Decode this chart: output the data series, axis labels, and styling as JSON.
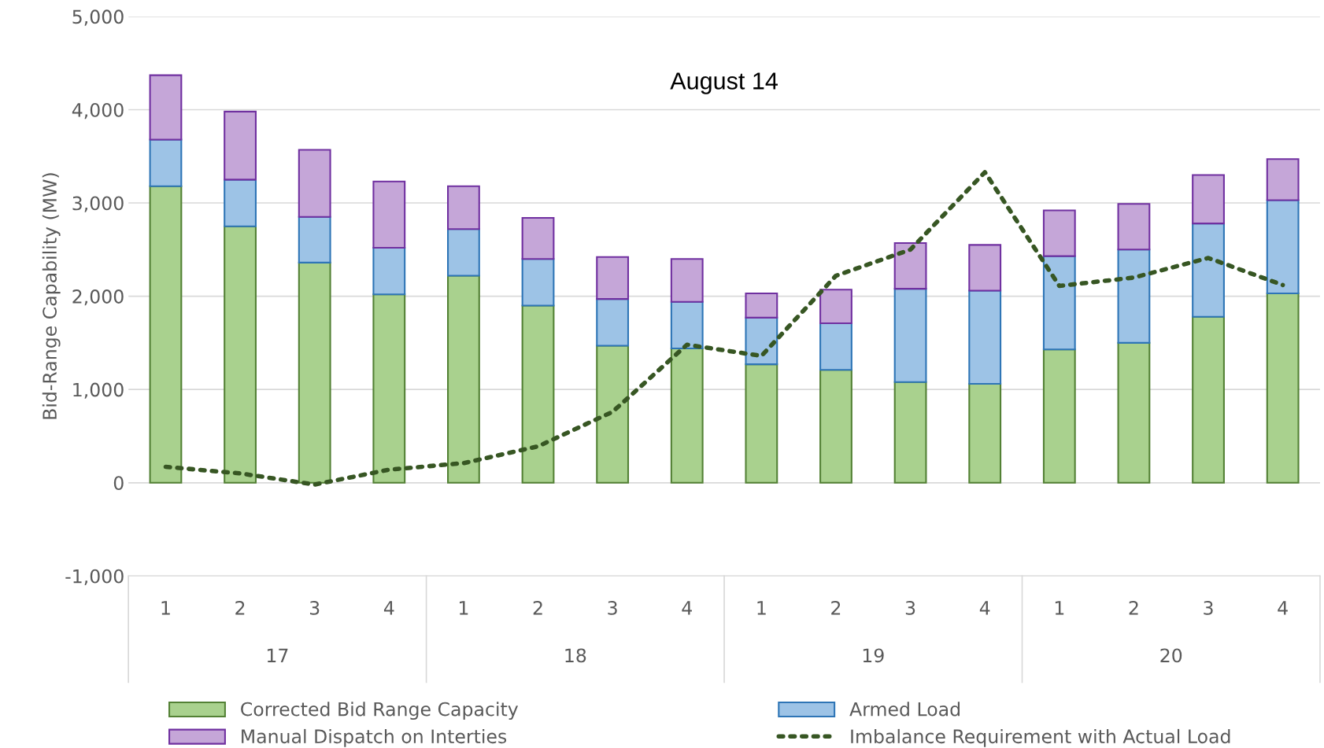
{
  "chart_data": {
    "type": "bar",
    "stacked": true,
    "title": "August 14",
    "ylabel": "Bid-Range Capability (MW)",
    "categories": [
      "1",
      "2",
      "3",
      "4",
      "1",
      "2",
      "3",
      "4",
      "1",
      "2",
      "3",
      "4",
      "1",
      "2",
      "3",
      "4"
    ],
    "annotations": [
      "17",
      "18",
      "19",
      "20"
    ],
    "ylim": [
      -1000,
      5000
    ],
    "yticks": [
      {
        "value": -1000,
        "label": "-1,000"
      },
      0,
      {
        "value": 1000,
        "label": "1,000"
      },
      {
        "value": 2000,
        "label": "2,000"
      },
      {
        "value": 3000,
        "label": "3,000"
      },
      {
        "value": 4000,
        "label": "4,000"
      },
      {
        "value": 5000,
        "label": "5,000"
      }
    ],
    "grid": "y",
    "legend": "bottom",
    "series": [
      {
        "name": "Corrected Bid Range Capacity",
        "color": "#a9d18e",
        "values": [
          3180,
          2750,
          2360,
          2020,
          2220,
          1900,
          1470,
          1440,
          1270,
          1210,
          1080,
          1060,
          1430,
          1500,
          1780,
          2030
        ]
      },
      {
        "name": "Manual Dispatch on Interties",
        "color": "#c5a6d8",
        "values": [
          690,
          730,
          720,
          710,
          460,
          440,
          450,
          460,
          260,
          360,
          490,
          490,
          490,
          490,
          520,
          440
        ]
      },
      {
        "name": "Armed Load",
        "color": "#9dc3e6",
        "values": [
          500,
          500,
          490,
          500,
          500,
          500,
          500,
          500,
          500,
          500,
          1000,
          1000,
          1000,
          1000,
          1000,
          1000
        ]
      },
      {
        "name": "Imbalance Requirement with Actual Load",
        "type": "line",
        "color": "#375623",
        "line_style": "dotted",
        "values": [
          170,
          100,
          -20,
          140,
          210,
          390,
          760,
          1480,
          1360,
          2220,
          2500,
          3330,
          2110,
          2200,
          2410,
          2120
        ]
      }
    ]
  }
}
